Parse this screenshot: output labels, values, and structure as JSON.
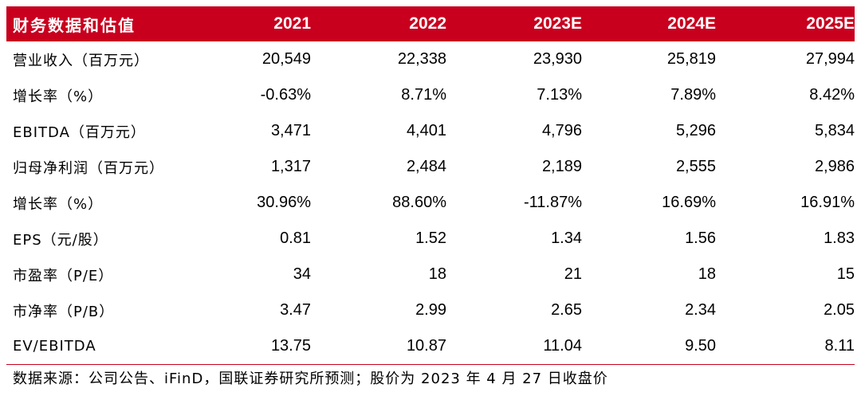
{
  "table": {
    "header": [
      "财务数据和估值",
      "2021",
      "2022",
      "2023E",
      "2024E",
      "2025E"
    ],
    "rows": [
      [
        "营业收入（百万元）",
        "20,549",
        "22,338",
        "23,930",
        "25,819",
        "27,994"
      ],
      [
        "增长率（%）",
        "-0.63%",
        "8.71%",
        "7.13%",
        "7.89%",
        "8.42%"
      ],
      [
        "EBITDA（百万元）",
        "3,471",
        "4,401",
        "4,796",
        "5,296",
        "5,834"
      ],
      [
        "归母净利润（百万元）",
        "1,317",
        "2,484",
        "2,189",
        "2,555",
        "2,986"
      ],
      [
        "增长率（%）",
        "30.96%",
        "88.60%",
        "-11.87%",
        "16.69%",
        "16.91%"
      ],
      [
        "EPS（元/股）",
        "0.81",
        "1.52",
        "1.34",
        "1.56",
        "1.83"
      ],
      [
        "市盈率（P/E）",
        "34",
        "18",
        "21",
        "18",
        "15"
      ],
      [
        "市净率（P/B）",
        "3.47",
        "2.99",
        "2.65",
        "2.34",
        "2.05"
      ],
      [
        "EV/EBITDA",
        "13.75",
        "10.87",
        "11.04",
        "9.50",
        "8.11"
      ]
    ]
  },
  "source": "数据来源：公司公告、iFinD，国联证券研究所预测；股价为 2023 年 4 月 27 日收盘价",
  "colors": {
    "header_bg": "#c8001e",
    "header_text": "#ffffff"
  }
}
